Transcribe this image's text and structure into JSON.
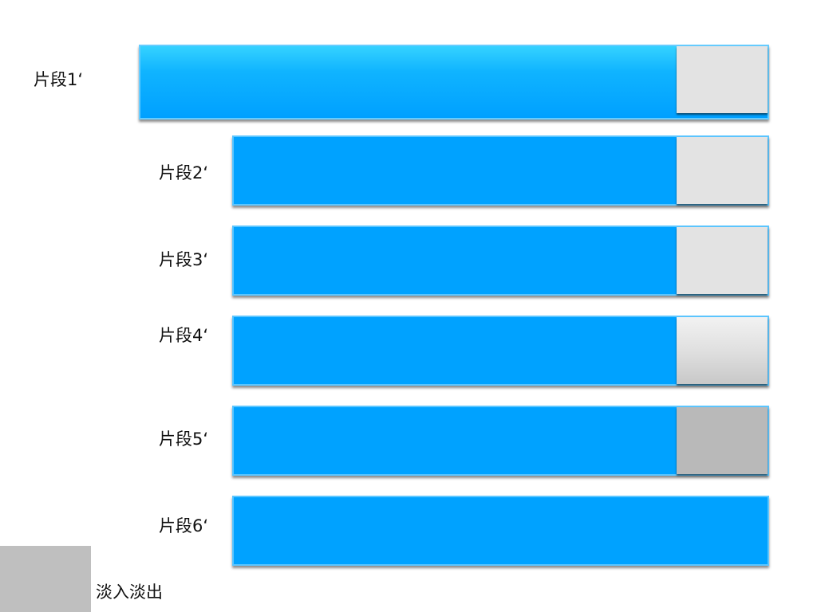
{
  "segments": [
    {
      "label": "片段1‘",
      "tail": "light"
    },
    {
      "label": "片段2‘",
      "tail": "light"
    },
    {
      "label": "片段3‘",
      "tail": "light"
    },
    {
      "label": "片段4‘",
      "tail": "gradient"
    },
    {
      "label": "片段5‘",
      "tail": "dark"
    },
    {
      "label": "片段6‘",
      "tail": "none"
    }
  ],
  "fade": {
    "label": "淡入淡出"
  },
  "colors": {
    "bar": "#00a2ff",
    "bar_border": "#5cc6ff",
    "tail_light": "#e3e3e3",
    "tail_dark": "#b9b9b9",
    "fade_box": "#bfbfbf"
  }
}
